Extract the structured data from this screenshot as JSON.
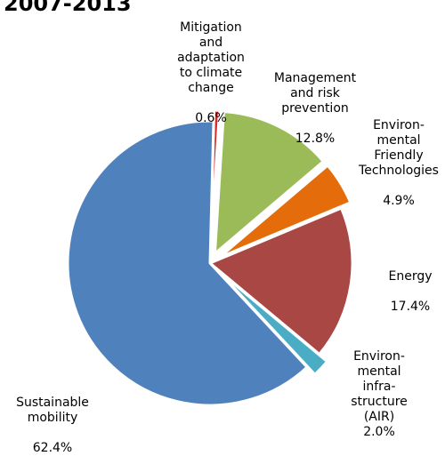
{
  "chart_data": {
    "type": "pie",
    "title": "2007-2013",
    "slices": [
      {
        "name": "Mitigation\nand\nadaptation\nto climate\nchange",
        "value": 0.6,
        "label": "0.6%",
        "color": "#D92A2A"
      },
      {
        "name": "Management\nand risk\nprevention",
        "value": 12.8,
        "label": "12.8%",
        "color": "#9BBB59"
      },
      {
        "name": "Environ-\nmental\nFriendly\nTechnologies",
        "value": 4.9,
        "label": "4.9%",
        "color": "#E46C0A"
      },
      {
        "name": "Energy",
        "value": 17.4,
        "label": "17.4%",
        "color": "#A84744"
      },
      {
        "name": "Environ-\nmental\ninfra-\nstructure\n(AIR)",
        "value": 2.0,
        "label": "2.0%",
        "color": "#4BACC6"
      },
      {
        "name": "Sustainable\nmobility",
        "value": 62.4,
        "label": "62.4%",
        "color": "#4F81BD"
      }
    ]
  }
}
